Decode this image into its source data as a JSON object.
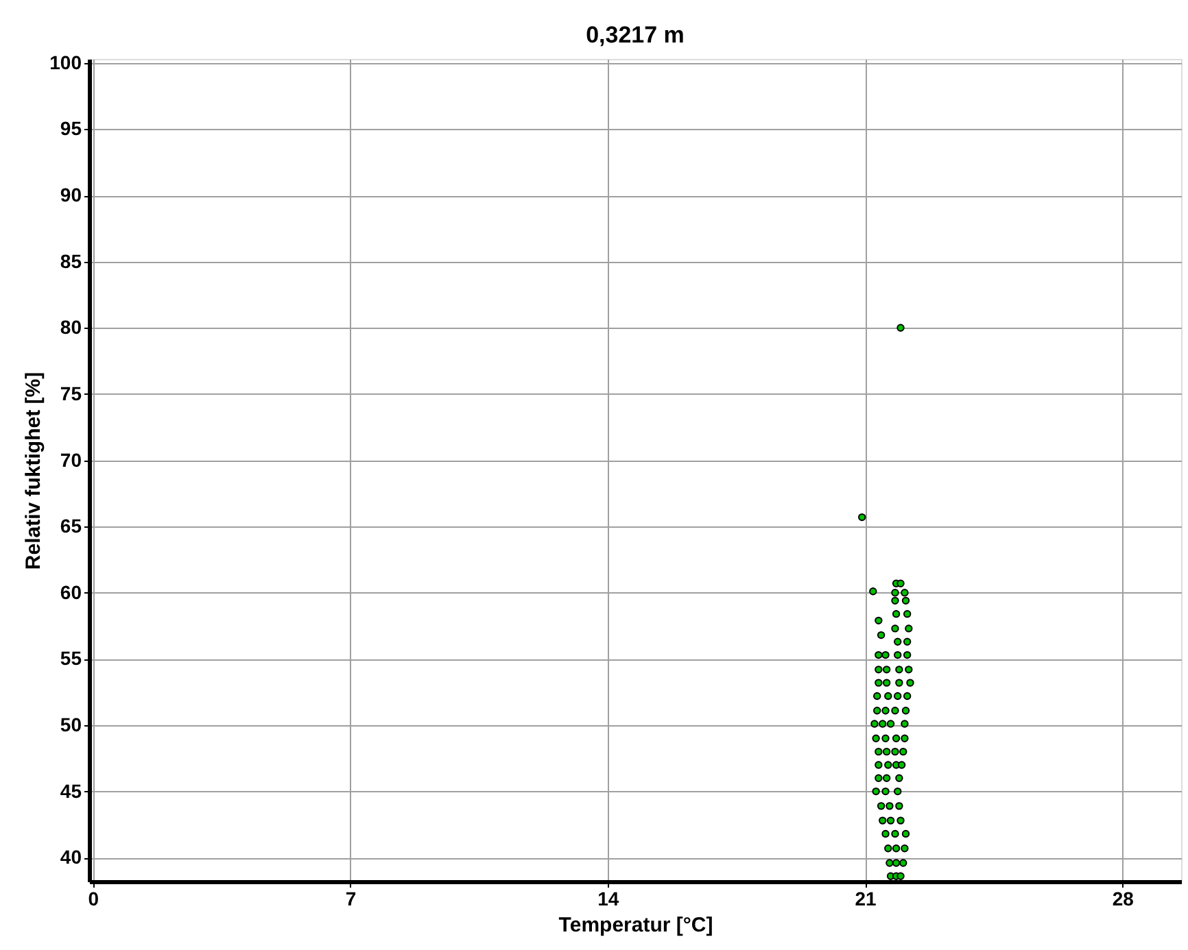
{
  "chart_data": {
    "type": "scatter",
    "title": "0,3217 m",
    "xlabel": "Temperatur [°C]",
    "ylabel": "Relativ fuktighet [%]",
    "xlim": [
      -0.1,
      29.6
    ],
    "ylim": [
      38.2,
      100.3
    ],
    "xticks": [
      0,
      7,
      14,
      21,
      28
    ],
    "yticks": [
      40,
      45,
      50,
      55,
      60,
      65,
      70,
      75,
      80,
      85,
      90,
      95,
      100
    ],
    "grid": true,
    "marker": "circle",
    "series": [
      {
        "color": "#00c000",
        "x": [
          21.97,
          20.92,
          21.22,
          21.37,
          21.44,
          21.85,
          21.97,
          21.82,
          22.08,
          21.82,
          22.11,
          21.85,
          22.15,
          21.82,
          22.19,
          21.89,
          22.15,
          21.37,
          21.56,
          21.89,
          22.15,
          21.37,
          21.59,
          21.93,
          22.19,
          21.37,
          21.59,
          21.93,
          22.23,
          21.33,
          21.63,
          21.89,
          22.15,
          21.33,
          21.56,
          21.82,
          22.11,
          21.26,
          21.48,
          21.7,
          22.08,
          21.3,
          21.56,
          21.85,
          22.08,
          21.37,
          21.59,
          21.82,
          22.04,
          21.37,
          21.63,
          21.85,
          22.0,
          21.37,
          21.59,
          21.93,
          21.3,
          21.56,
          21.89,
          21.44,
          21.67,
          21.93,
          21.48,
          21.7,
          21.97,
          21.56,
          21.82,
          22.11,
          21.63,
          21.85,
          22.08,
          21.67,
          21.85,
          22.04,
          21.7,
          21.85,
          21.97
        ],
        "values": [
          80.0,
          65.7,
          60.1,
          57.9,
          56.8,
          60.7,
          60.7,
          60.0,
          60.0,
          59.4,
          59.4,
          58.4,
          58.4,
          57.3,
          57.3,
          56.3,
          56.3,
          55.3,
          55.3,
          55.3,
          55.3,
          54.2,
          54.2,
          54.2,
          54.2,
          53.2,
          53.2,
          53.2,
          53.2,
          52.2,
          52.2,
          52.2,
          52.2,
          51.1,
          51.1,
          51.1,
          51.1,
          50.1,
          50.1,
          50.1,
          50.1,
          49.0,
          49.0,
          49.0,
          49.0,
          48.0,
          48.0,
          48.0,
          48.0,
          47.0,
          47.0,
          47.0,
          47.0,
          46.0,
          46.0,
          46.0,
          45.0,
          45.0,
          45.0,
          43.9,
          43.9,
          43.9,
          42.8,
          42.8,
          42.8,
          41.8,
          41.8,
          41.8,
          40.7,
          40.7,
          40.7,
          39.6,
          39.6,
          39.6,
          38.6,
          38.6,
          38.6
        ]
      }
    ]
  }
}
